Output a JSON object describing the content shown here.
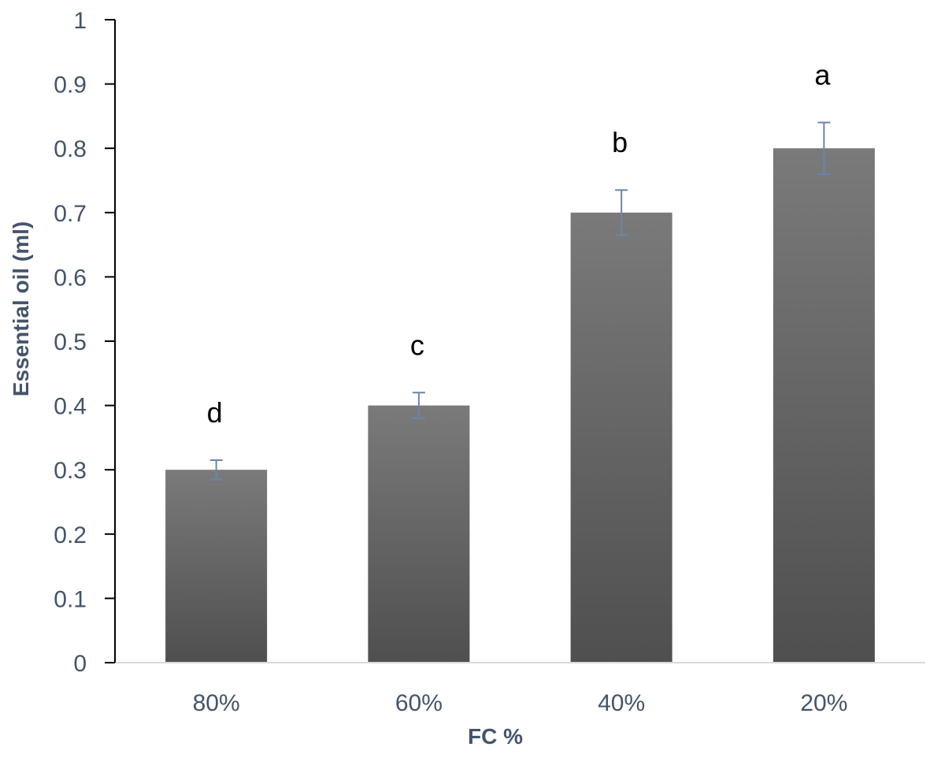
{
  "chart_data": {
    "type": "bar",
    "title": "",
    "xlabel": "FC %",
    "ylabel": "Essential oil (ml)",
    "categories": [
      "80%",
      "60%",
      "40%",
      "20%"
    ],
    "values": [
      0.3,
      0.4,
      0.7,
      0.8
    ],
    "error": [
      0.015,
      0.02,
      0.035,
      0.04
    ],
    "significance_letters": [
      "d",
      "c",
      "b",
      "a"
    ],
    "ylim": [
      0,
      1
    ],
    "yticks": [
      "0",
      "0.1",
      "0.2",
      "0.3",
      "0.4",
      "0.5",
      "0.6",
      "0.7",
      "0.8",
      "0.9",
      "1"
    ],
    "grid": false,
    "legend": "none",
    "colors": {
      "bar_top": "#7a7a7a",
      "bar_bottom": "#4f4f4f",
      "axis": "#000000",
      "baseline": "#d9d9d9",
      "error_bar": "#6b86a8",
      "tick_text": "#44546a",
      "letter_text": "#000000"
    }
  }
}
